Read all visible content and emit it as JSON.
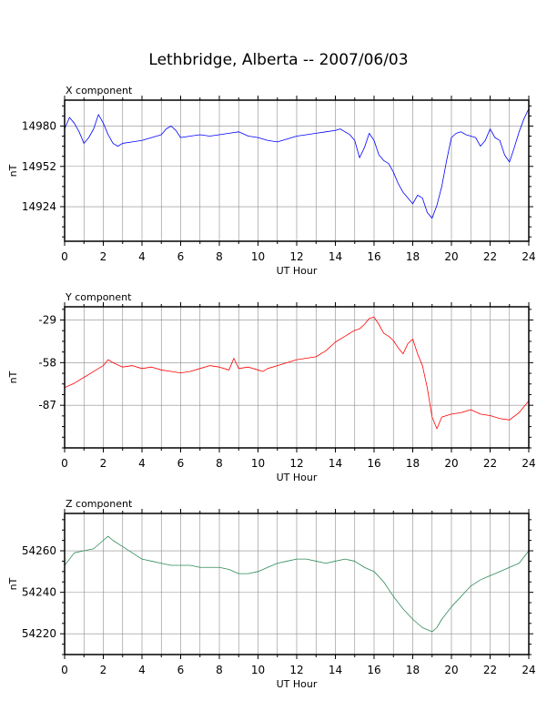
{
  "title": "Lethbridge, Alberta -- 2007/06/03",
  "colors": {
    "x": "#0000ff",
    "y": "#ff0000",
    "z": "#2e8b57",
    "grid": "#8c8c8c",
    "frame": "#000000"
  },
  "chart_data": [
    {
      "type": "line",
      "panel_label": "X component",
      "xlabel": "UT Hour",
      "ylabel": "nT",
      "xlim": [
        0,
        24
      ],
      "ylim": [
        14900,
        14998
      ],
      "xticks": [
        0,
        2,
        4,
        6,
        8,
        10,
        12,
        14,
        16,
        18,
        20,
        22,
        24
      ],
      "yticks": [
        14924,
        14952,
        14980
      ],
      "grid": true,
      "series": [
        {
          "color": "#0000ff",
          "x": [
            0,
            0.25,
            0.5,
            0.75,
            1,
            1.25,
            1.5,
            1.75,
            2,
            2.25,
            2.5,
            2.75,
            3,
            3.5,
            4,
            4.5,
            5,
            5.25,
            5.5,
            5.75,
            6,
            6.5,
            7,
            7.5,
            8,
            8.5,
            9,
            9.5,
            10,
            10.5,
            11,
            11.5,
            12,
            12.5,
            13,
            13.5,
            14,
            14.25,
            14.5,
            14.75,
            15,
            15.25,
            15.5,
            15.75,
            16,
            16.25,
            16.5,
            16.75,
            17,
            17.25,
            17.5,
            17.75,
            18,
            18.25,
            18.5,
            18.75,
            19,
            19.25,
            19.5,
            19.75,
            20,
            20.25,
            20.5,
            20.75,
            21,
            21.25,
            21.5,
            21.75,
            22,
            22.25,
            22.5,
            22.75,
            23,
            23.25,
            23.5,
            23.75,
            24
          ],
          "values": [
            14978,
            14986,
            14982,
            14976,
            14968,
            14972,
            14978,
            14988,
            14982,
            14974,
            14968,
            14966,
            14968,
            14969,
            14970,
            14972,
            14974,
            14978,
            14980,
            14977,
            14972,
            14973,
            14974,
            14973,
            14974,
            14975,
            14976,
            14973,
            14972,
            14970,
            14969,
            14971,
            14973,
            14974,
            14975,
            14976,
            14977,
            14978,
            14976,
            14974,
            14970,
            14958,
            14965,
            14975,
            14970,
            14960,
            14956,
            14954,
            14948,
            14940,
            14934,
            14930,
            14926,
            14932,
            14930,
            14920,
            14916,
            14925,
            14938,
            14956,
            14972,
            14975,
            14976,
            14974,
            14973,
            14972,
            14966,
            14970,
            14978,
            14972,
            14970,
            14960,
            14955,
            14965,
            14976,
            14985,
            14992
          ]
        }
      ]
    },
    {
      "type": "line",
      "panel_label": "Y component",
      "xlabel": "UT Hour",
      "ylabel": "nT",
      "xlim": [
        0,
        24
      ],
      "ylim": [
        -116,
        -20
      ],
      "xticks": [
        0,
        2,
        4,
        6,
        8,
        10,
        12,
        14,
        16,
        18,
        20,
        22,
        24
      ],
      "yticks": [
        -29,
        -58,
        -87
      ],
      "grid": true,
      "series": [
        {
          "color": "#ff0000",
          "x": [
            0,
            0.5,
            1,
            1.5,
            2,
            2.25,
            2.5,
            3,
            3.5,
            4,
            4.5,
            5,
            5.5,
            6,
            6.5,
            7,
            7.5,
            8,
            8.5,
            8.75,
            9,
            9.5,
            10,
            10.25,
            10.5,
            11,
            11.5,
            12,
            12.5,
            13,
            13.5,
            14,
            14.5,
            15,
            15.25,
            15.5,
            15.75,
            16,
            16.25,
            16.5,
            16.75,
            17,
            17.25,
            17.5,
            17.75,
            18,
            18.25,
            18.5,
            18.75,
            19,
            19.25,
            19.5,
            20,
            20.5,
            21,
            21.5,
            22,
            22.5,
            23,
            23.5,
            24
          ],
          "values": [
            -75,
            -72,
            -68,
            -64,
            -60,
            -56,
            -58,
            -61,
            -60,
            -62,
            -61,
            -63,
            -64,
            -65,
            -64,
            -62,
            -60,
            -61,
            -63,
            -55,
            -62,
            -61,
            -63,
            -64,
            -62,
            -60,
            -58,
            -56,
            -55,
            -54,
            -50,
            -44,
            -40,
            -36,
            -35,
            -32,
            -28,
            -27,
            -32,
            -38,
            -40,
            -43,
            -48,
            -52,
            -45,
            -42,
            -52,
            -60,
            -75,
            -95,
            -103,
            -95,
            -93,
            -92,
            -90,
            -93,
            -94,
            -96,
            -97,
            -92,
            -84
          ]
        }
      ]
    },
    {
      "type": "line",
      "panel_label": "Z component",
      "xlabel": "UT Hour",
      "ylabel": "nT",
      "xlim": [
        0,
        24
      ],
      "ylim": [
        54210,
        54278
      ],
      "xticks": [
        0,
        2,
        4,
        6,
        8,
        10,
        12,
        14,
        16,
        18,
        20,
        22,
        24
      ],
      "yticks": [
        54220,
        54240,
        54260
      ],
      "grid": true,
      "series": [
        {
          "color": "#2e8b57",
          "x": [
            0,
            0.5,
            1,
            1.5,
            2,
            2.25,
            2.5,
            3,
            3.5,
            4,
            4.5,
            5,
            5.5,
            6,
            6.5,
            7,
            7.5,
            8,
            8.5,
            9,
            9.5,
            10,
            10.5,
            11,
            11.5,
            12,
            12.5,
            13,
            13.5,
            14,
            14.5,
            15,
            15.5,
            16,
            16.5,
            17,
            17.5,
            18,
            18.5,
            19,
            19.25,
            19.5,
            20,
            20.5,
            21,
            21.5,
            22,
            22.5,
            23,
            23.5,
            24
          ],
          "values": [
            54253,
            54259,
            54260,
            54261,
            54265,
            54267,
            54265,
            54262,
            54259,
            54256,
            54255,
            54254,
            54253,
            54253,
            54253,
            54252,
            54252,
            54252,
            54251,
            54249,
            54249,
            54250,
            54252,
            54254,
            54255,
            54256,
            54256,
            54255,
            54254,
            54255,
            54256,
            54255,
            54252,
            54250,
            54245,
            54238,
            54232,
            54227,
            54223,
            54221,
            54223,
            54227,
            54233,
            54238,
            54243,
            54246,
            54248,
            54250,
            54252,
            54254,
            54260
          ]
        }
      ]
    }
  ]
}
